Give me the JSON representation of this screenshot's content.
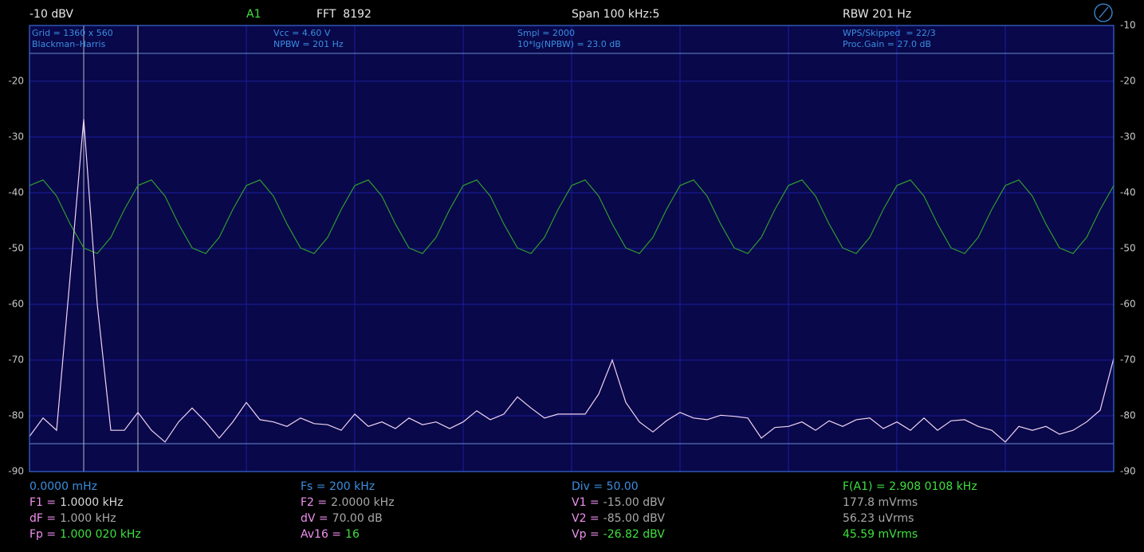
{
  "header": {
    "level": "-10 dBV",
    "channel": "A1",
    "fft": "FFT  8192",
    "span": "Span 100 kHz:5",
    "rbw": "RBW 201 Hz"
  },
  "info": [
    [
      "Grid = 1360 x 560",
      "Blackman–Harris"
    ],
    [
      "Vcc = 4.60 V",
      "NPBW = 201 Hz"
    ],
    [
      "Smpl = 2000",
      "10*lg(NPBW) = 23.0 dB"
    ],
    [
      "WPS/Skipped  = 22/3",
      "Proc.Gain = 27.0 dB"
    ]
  ],
  "chart_data": {
    "type": "line",
    "xlim": [
      0,
      20
    ],
    "ylim": [
      -90,
      -10
    ],
    "yticks": [
      -10,
      -20,
      -30,
      -40,
      -50,
      -60,
      -70,
      -80,
      -90
    ],
    "grid": true,
    "x": [
      0,
      0.25,
      0.5,
      0.75,
      1,
      1.25,
      1.5,
      1.75,
      2,
      2.25,
      2.5,
      2.75,
      3,
      3.25,
      3.5,
      3.75,
      4,
      4.25,
      4.5,
      4.75,
      5,
      5.25,
      5.5,
      5.75,
      6,
      6.25,
      6.5,
      6.75,
      7,
      7.25,
      7.5,
      7.75,
      8,
      8.25,
      8.5,
      8.75,
      9,
      9.25,
      9.5,
      9.75,
      10,
      10.25,
      10.5,
      10.75,
      11,
      11.25,
      11.5,
      11.75,
      12,
      12.25,
      12.5,
      12.75,
      13,
      13.25,
      13.5,
      13.75,
      14,
      14.25,
      14.5,
      14.75,
      15,
      15.25,
      15.5,
      15.75,
      16,
      16.25,
      16.5,
      16.75,
      17,
      17.25,
      17.5,
      17.75,
      18,
      18.25,
      18.5,
      18.75,
      19,
      19.25,
      19.5,
      19.75,
      20
    ],
    "series": [
      {
        "color": "#2f9a2f",
        "values": [
          -38.7,
          -37.7,
          -40.6,
          -45.6,
          -49.9,
          -50.9,
          -48.0,
          -43.0,
          -38.7,
          -37.7,
          -40.6,
          -45.6,
          -49.9,
          -50.9,
          -48.0,
          -43.0,
          -38.7,
          -37.7,
          -40.6,
          -45.6,
          -49.9,
          -50.9,
          -48.0,
          -43.0,
          -38.7,
          -37.7,
          -40.6,
          -45.6,
          -49.9,
          -50.9,
          -48.0,
          -43.0,
          -38.7,
          -37.7,
          -40.6,
          -45.6,
          -49.9,
          -50.9,
          -48.0,
          -43.0,
          -38.7,
          -37.7,
          -40.6,
          -45.6,
          -49.9,
          -50.9,
          -48.0,
          -43.0,
          -38.7,
          -37.7,
          -40.6,
          -45.6,
          -49.9,
          -50.9,
          -48.0,
          -43.0,
          -38.7,
          -37.7,
          -40.6,
          -45.6,
          -49.9,
          -50.9,
          -48.0,
          -43.0,
          -38.7,
          -37.7,
          -40.6,
          -45.6,
          -49.9,
          -50.9,
          -48.0,
          -43.0,
          -38.7,
          -37.7,
          -40.6,
          -45.6,
          -49.9,
          -50.9,
          -48.0,
          -43.0,
          -38.7
        ]
      },
      {
        "color": "#f2d4f2",
        "values": [
          -83.7,
          -80.4,
          -82.6,
          -55,
          -26.8,
          -60,
          -82.6,
          -82.6,
          -79.4,
          -82.6,
          -84.7,
          -81.1,
          -78.6,
          -81.1,
          -84.0,
          -81.1,
          -77.6,
          -80.7,
          -81.1,
          -81.9,
          -80.4,
          -81.4,
          -81.6,
          -82.6,
          -79.7,
          -81.9,
          -81.1,
          -82.3,
          -80.4,
          -81.6,
          -81.1,
          -82.3,
          -81.1,
          -79.1,
          -80.7,
          -79.7,
          -76.6,
          -78.6,
          -80.4,
          -79.7,
          -79.7,
          -79.7,
          -76.1,
          -70.0,
          -77.6,
          -81.1,
          -82.9,
          -80.9,
          -79.4,
          -80.4,
          -80.7,
          -79.9,
          -80.1,
          -80.4,
          -84.0,
          -82.1,
          -81.9,
          -81.1,
          -82.6,
          -80.9,
          -81.9,
          -80.7,
          -80.4,
          -82.3,
          -81.1,
          -82.6,
          -80.4,
          -82.6,
          -80.9,
          -80.7,
          -81.9,
          -82.6,
          -84.7,
          -81.9,
          -82.6,
          -81.9,
          -83.3,
          -82.6,
          -81.1,
          -79.0,
          -69.7
        ]
      }
    ]
  },
  "footer": [
    [
      {
        "text": "0.0000 mHz",
        "color": "#3a8ee0"
      },
      {
        "label": "F1 =",
        "value": "1.0000 kHz",
        "color": "#d8d8d8"
      },
      {
        "label": "dF =",
        "value": "1.000 kHz",
        "color": "#a8a8a8"
      },
      {
        "label": "Fp =",
        "value": "1.000 020 kHz",
        "color": "#3ee03e"
      }
    ],
    [
      {
        "text": "Fs = 200 kHz",
        "color": "#3a8ee0"
      },
      {
        "label": "F2 =",
        "value": "2.0000 kHz",
        "color": "#a8a8a8"
      },
      {
        "label": "dV =",
        "value": "70.00 dB",
        "color": "#a8a8a8"
      },
      {
        "label": "Av16 =",
        "value": "16",
        "color": "#3ee03e"
      }
    ],
    [
      {
        "text": "Div = 50.00",
        "color": "#3a8ee0"
      },
      {
        "label": "V1 =",
        "value": "-15.00 dBV",
        "color": "#a8a8a8"
      },
      {
        "label": "V2 =",
        "value": "-85.00 dBV",
        "color": "#a8a8a8"
      },
      {
        "label": "Vp =",
        "value": "-26.82 dBV",
        "color": "#3ee03e"
      }
    ],
    [
      {
        "text": "F(A1) = 2.908 0108 kHz",
        "color": "#3ee03e"
      },
      {
        "text": "177.8 mVrms",
        "color": "#a8a8a8"
      },
      {
        "text": "56.23 uVrms",
        "color": "#a8a8a8"
      },
      {
        "text": "45.59 mVrms",
        "color": "#3ee03e"
      }
    ]
  ]
}
